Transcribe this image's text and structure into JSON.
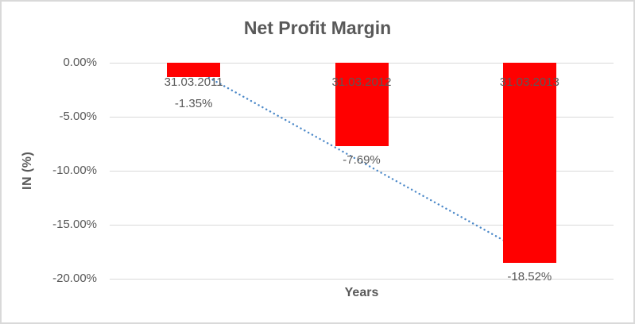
{
  "window": {
    "background": "#ffffff",
    "border_color": "#d9d9d9"
  },
  "chart_data": {
    "type": "bar",
    "title": "Net Profit Margin",
    "xlabel": "Years",
    "ylabel": "IN (%)",
    "categories": [
      "31.03.2011",
      "31.03.2012",
      "31.03.2013"
    ],
    "series": [
      {
        "name": "Net Profit Margin",
        "values": [
          -1.35,
          -7.69,
          -18.52
        ]
      }
    ],
    "data_labels": [
      "-1.35%",
      "-7.69%",
      "-18.52%"
    ],
    "y_ticks": [
      "0.00%",
      "-5.00%",
      "-10.00%",
      "-15.00%",
      "-20.00%"
    ],
    "y_tick_values": [
      0,
      -5,
      -10,
      -15,
      -20
    ],
    "ylim": [
      -20,
      0
    ],
    "grid": true,
    "legend": "none",
    "trendline": {
      "type": "linear",
      "style": "dotted",
      "color": "#4e8ac9"
    },
    "colors": {
      "bar": "#ff0000",
      "gridline": "#d9d9d9",
      "text": "#595959",
      "title": "#595959"
    }
  }
}
